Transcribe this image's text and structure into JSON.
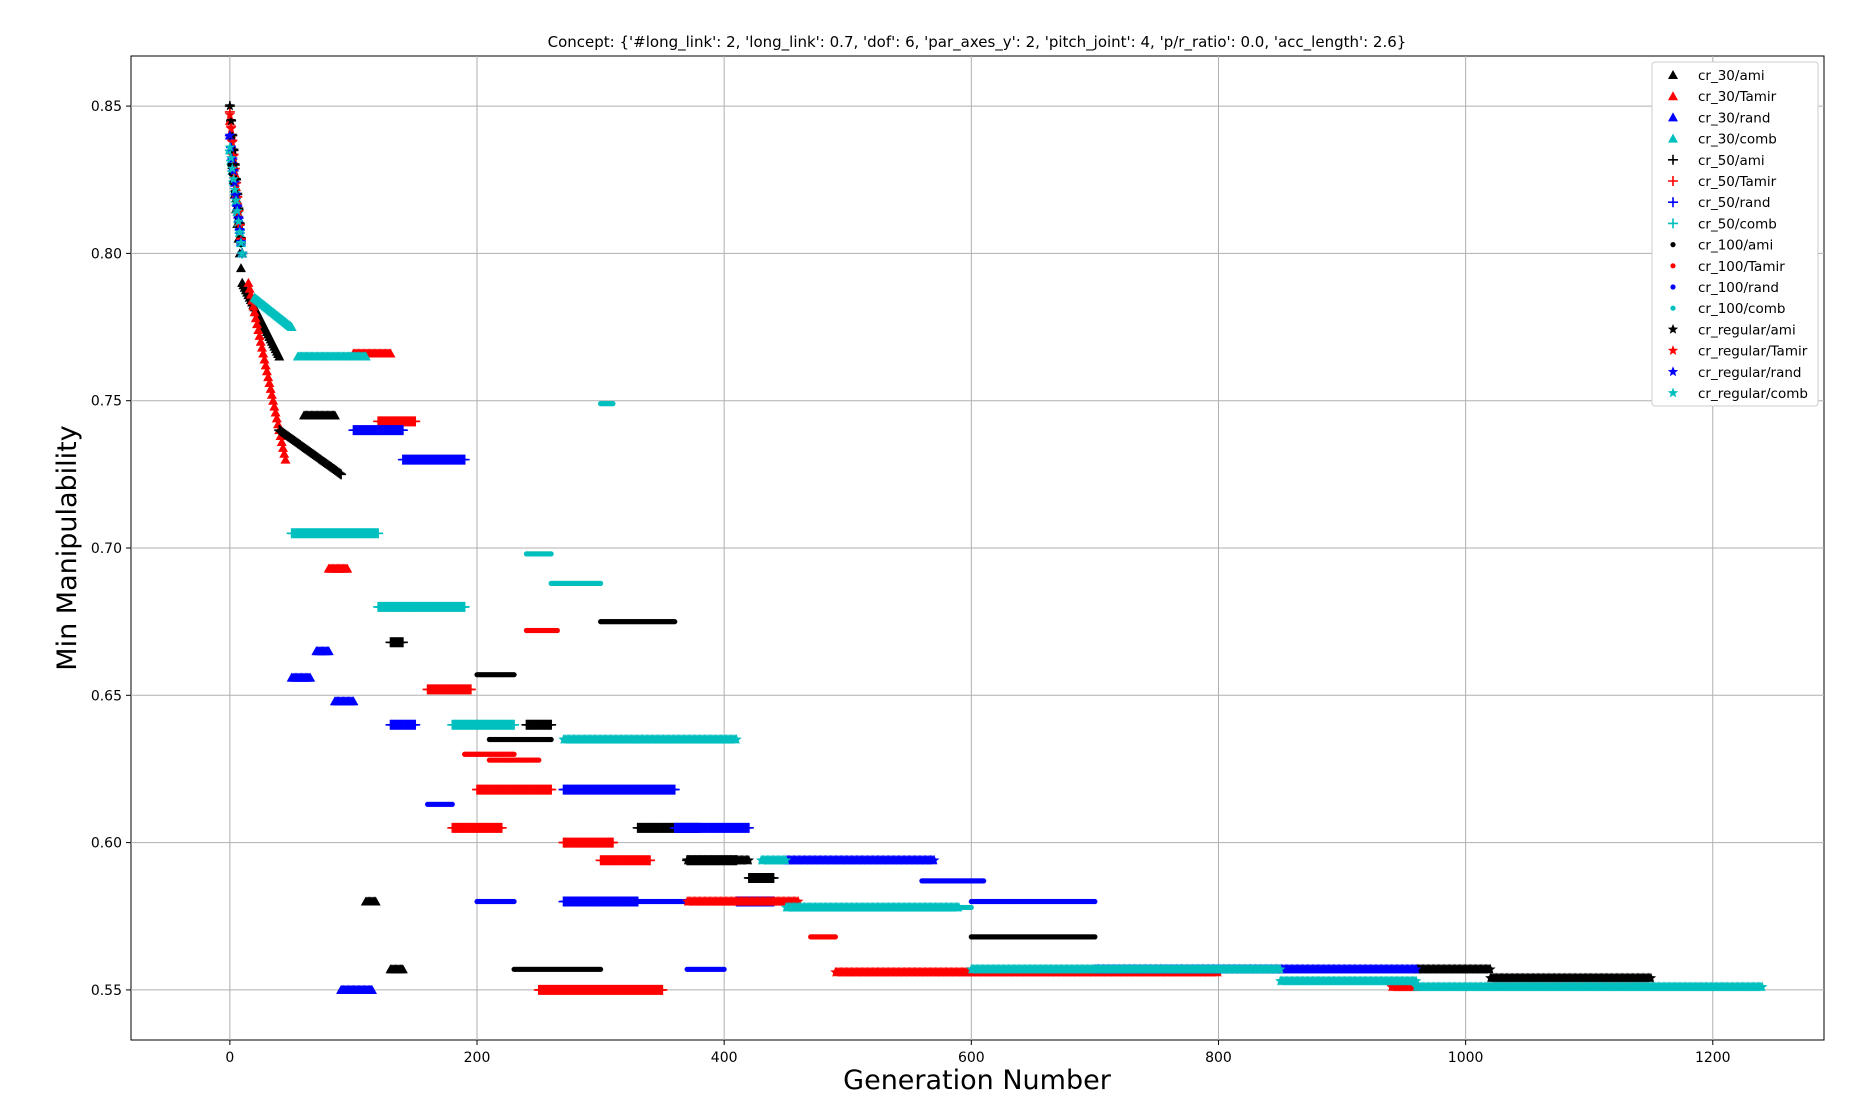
{
  "chart_data": {
    "type": "scatter",
    "title": "Concept: {'#long_link': 2, 'long_link': 0.7, 'dof': 6, 'par_axes_y': 2, 'pitch_joint': 4, 'p/r_ratio': 0.0, 'acc_length': 2.6}",
    "xlabel": "Generation Number",
    "ylabel": "Min Manipulability",
    "xlim": [
      -80,
      1290
    ],
    "ylim": [
      0.533,
      0.867
    ],
    "xticks": [
      0,
      200,
      400,
      600,
      800,
      1000,
      1200
    ],
    "yticks": [
      0.55,
      0.6,
      0.65,
      0.7,
      0.75,
      0.8,
      0.85
    ],
    "ytick_labels": [
      "0.55",
      "0.60",
      "0.65",
      "0.70",
      "0.75",
      "0.80",
      "0.85"
    ],
    "grid": true,
    "legend_position": "top-right",
    "colors": {
      "ami": "#000000",
      "Tamir": "#ff0000",
      "rand": "#0000ff",
      "comb": "#00bfbf"
    },
    "series": [
      {
        "name": "cr_30/ami",
        "marker": "triangle",
        "color": "#000000",
        "segments": [
          [
            0,
            10,
            0.84,
            0.79
          ],
          [
            10,
            40,
            0.79,
            0.765
          ],
          [
            60,
            85,
            0.745,
            0.745
          ],
          [
            110,
            118,
            0.58,
            0.58
          ],
          [
            130,
            140,
            0.557,
            0.557
          ]
        ]
      },
      {
        "name": "cr_30/Tamir",
        "marker": "triangle",
        "color": "#ff0000",
        "segments": [
          [
            0,
            10,
            0.845,
            0.8
          ],
          [
            15,
            45,
            0.79,
            0.73
          ],
          [
            80,
            95,
            0.693,
            0.693
          ],
          [
            100,
            130,
            0.766,
            0.766
          ]
        ]
      },
      {
        "name": "cr_30/rand",
        "marker": "triangle",
        "color": "#0000ff",
        "segments": [
          [
            0,
            10,
            0.84,
            0.8
          ],
          [
            50,
            65,
            0.656,
            0.656
          ],
          [
            70,
            80,
            0.665,
            0.665
          ],
          [
            85,
            100,
            0.648,
            0.648
          ],
          [
            90,
            115,
            0.55,
            0.55
          ]
        ]
      },
      {
        "name": "cr_30/comb",
        "marker": "triangle",
        "color": "#00bfbf",
        "segments": [
          [
            0,
            10,
            0.835,
            0.8
          ],
          [
            20,
            50,
            0.785,
            0.775
          ],
          [
            55,
            110,
            0.765,
            0.765
          ]
        ]
      },
      {
        "name": "cr_50/ami",
        "marker": "plus",
        "color": "#000000",
        "segments": [
          [
            0,
            10,
            0.85,
            0.8
          ],
          [
            40,
            90,
            0.74,
            0.725
          ],
          [
            130,
            140,
            0.668,
            0.668
          ],
          [
            240,
            260,
            0.64,
            0.64
          ],
          [
            330,
            380,
            0.605,
            0.605
          ],
          [
            370,
            410,
            0.594,
            0.594
          ],
          [
            420,
            440,
            0.588,
            0.588
          ]
        ]
      },
      {
        "name": "cr_50/Tamir",
        "marker": "plus",
        "color": "#ff0000",
        "segments": [
          [
            0,
            10,
            0.848,
            0.8
          ],
          [
            120,
            150,
            0.743,
            0.743
          ],
          [
            160,
            195,
            0.652,
            0.652
          ],
          [
            180,
            220,
            0.605,
            0.605
          ],
          [
            200,
            260,
            0.618,
            0.618
          ],
          [
            270,
            310,
            0.6,
            0.6
          ],
          [
            250,
            350,
            0.55,
            0.55
          ],
          [
            300,
            340,
            0.594,
            0.594
          ]
        ]
      },
      {
        "name": "cr_50/rand",
        "marker": "plus",
        "color": "#0000ff",
        "segments": [
          [
            0,
            10,
            0.84,
            0.8
          ],
          [
            100,
            140,
            0.74,
            0.74
          ],
          [
            140,
            190,
            0.73,
            0.73
          ],
          [
            130,
            150,
            0.64,
            0.64
          ],
          [
            270,
            360,
            0.618,
            0.618
          ],
          [
            360,
            420,
            0.605,
            0.605
          ],
          [
            410,
            440,
            0.58,
            0.58
          ],
          [
            270,
            330,
            0.58,
            0.58
          ]
        ]
      },
      {
        "name": "cr_50/comb",
        "marker": "plus",
        "color": "#00bfbf",
        "segments": [
          [
            0,
            10,
            0.835,
            0.8
          ],
          [
            50,
            120,
            0.705,
            0.705
          ],
          [
            120,
            190,
            0.68,
            0.68
          ],
          [
            180,
            230,
            0.64,
            0.64
          ]
        ]
      },
      {
        "name": "cr_100/ami",
        "marker": "dot",
        "color": "#000000",
        "segments": [
          [
            0,
            10,
            0.83,
            0.8
          ],
          [
            200,
            230,
            0.657,
            0.657
          ],
          [
            210,
            260,
            0.635,
            0.635
          ],
          [
            230,
            300,
            0.557,
            0.557
          ],
          [
            300,
            360,
            0.675,
            0.675
          ],
          [
            600,
            700,
            0.568,
            0.568
          ],
          [
            690,
            960,
            0.557,
            0.557
          ]
        ]
      },
      {
        "name": "cr_100/Tamir",
        "marker": "dot",
        "color": "#ff0000",
        "segments": [
          [
            0,
            10,
            0.845,
            0.8
          ],
          [
            190,
            230,
            0.63,
            0.63
          ],
          [
            210,
            250,
            0.628,
            0.628
          ],
          [
            240,
            265,
            0.672,
            0.672
          ],
          [
            470,
            490,
            0.568,
            0.568
          ]
        ]
      },
      {
        "name": "cr_100/rand",
        "marker": "dot",
        "color": "#0000ff",
        "segments": [
          [
            0,
            10,
            0.84,
            0.8
          ],
          [
            160,
            180,
            0.613,
            0.613
          ],
          [
            200,
            230,
            0.58,
            0.58
          ],
          [
            280,
            370,
            0.58,
            0.58
          ],
          [
            370,
            400,
            0.557,
            0.557
          ],
          [
            560,
            610,
            0.587,
            0.587
          ],
          [
            600,
            700,
            0.58,
            0.58
          ]
        ]
      },
      {
        "name": "cr_100/comb",
        "marker": "dot",
        "color": "#00bfbf",
        "segments": [
          [
            0,
            10,
            0.835,
            0.8
          ],
          [
            240,
            260,
            0.698,
            0.698
          ],
          [
            260,
            300,
            0.688,
            0.688
          ],
          [
            300,
            310,
            0.749,
            0.749
          ],
          [
            540,
            600,
            0.578,
            0.578
          ]
        ]
      },
      {
        "name": "cr_regular/ami",
        "marker": "star",
        "color": "#000000",
        "segments": [
          [
            0,
            10,
            0.85,
            0.8
          ],
          [
            370,
            420,
            0.594,
            0.594
          ],
          [
            960,
            1020,
            0.557,
            0.557
          ],
          [
            1020,
            1150,
            0.554,
            0.554
          ]
        ]
      },
      {
        "name": "cr_regular/Tamir",
        "marker": "star",
        "color": "#ff0000",
        "segments": [
          [
            0,
            10,
            0.847,
            0.8
          ],
          [
            370,
            460,
            0.58,
            0.58
          ],
          [
            490,
            800,
            0.556,
            0.556
          ],
          [
            940,
            960,
            0.551,
            0.551
          ]
        ]
      },
      {
        "name": "cr_regular/rand",
        "marker": "star",
        "color": "#0000ff",
        "segments": [
          [
            0,
            10,
            0.84,
            0.8
          ],
          [
            450,
            570,
            0.594,
            0.594
          ],
          [
            700,
            960,
            0.557,
            0.557
          ]
        ]
      },
      {
        "name": "cr_regular/comb",
        "marker": "star",
        "color": "#00bfbf",
        "segments": [
          [
            0,
            10,
            0.836,
            0.8
          ],
          [
            270,
            410,
            0.635,
            0.635
          ],
          [
            430,
            450,
            0.594,
            0.594
          ],
          [
            450,
            590,
            0.578,
            0.578
          ],
          [
            600,
            850,
            0.557,
            0.557
          ],
          [
            850,
            960,
            0.553,
            0.553
          ],
          [
            960,
            1240,
            0.551,
            0.551
          ]
        ]
      }
    ]
  }
}
